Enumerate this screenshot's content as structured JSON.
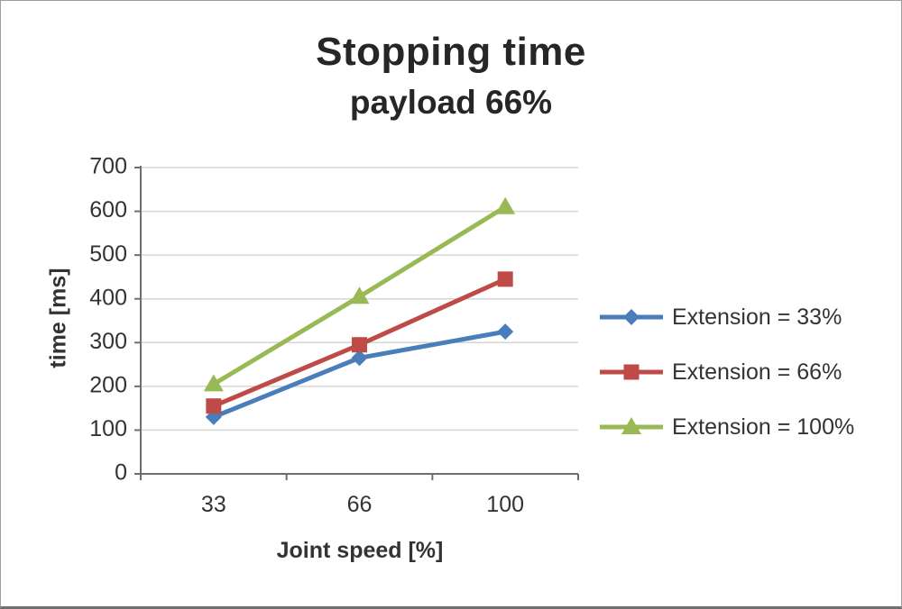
{
  "chart": {
    "title": "Stopping time",
    "subtitle": "payload 66%",
    "xlabel": "Joint speed [%]",
    "ylabel": "time [ms]"
  },
  "chart_data": {
    "type": "line",
    "title": "Stopping time",
    "subtitle": "payload 66%",
    "xlabel": "Joint speed [%]",
    "ylabel": "time [ms]",
    "categories": [
      "33",
      "66",
      "100"
    ],
    "ylim": [
      0,
      700
    ],
    "ytick_step": 100,
    "grid": true,
    "legend_position": "right",
    "colors": {
      "gridline": "#d6d6d6",
      "axis": "#6e6e6e",
      "tick_text": "#333333"
    },
    "series": [
      {
        "name": "Extension = 33%",
        "values": [
          130,
          265,
          325
        ],
        "color": "#4a7ebb",
        "marker": "diamond"
      },
      {
        "name": "Extension = 66%",
        "values": [
          155,
          295,
          445
        ],
        "color": "#be4b48",
        "marker": "square"
      },
      {
        "name": "Extension = 100%",
        "values": [
          205,
          405,
          610
        ],
        "color": "#98b954",
        "marker": "triangle"
      }
    ]
  }
}
